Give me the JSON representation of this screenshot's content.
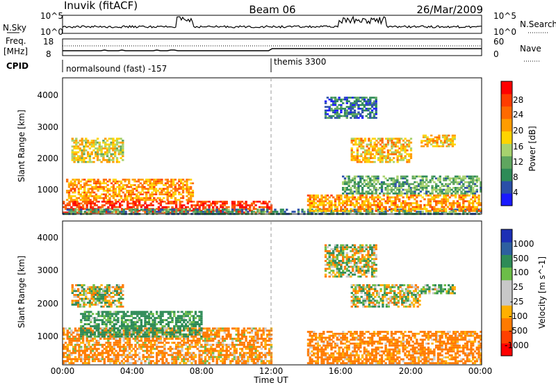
{
  "header": {
    "station": "Inuvik (fitACF)",
    "beam": "Beam 06",
    "date": "26/Mar/2009"
  },
  "noise_panel": {
    "left_label": "N.Sky",
    "right_label": "N.Search",
    "left_ticks": [
      "10^5",
      "10^0"
    ],
    "right_ticks": [
      "10^5",
      "10^0"
    ]
  },
  "freq_panel": {
    "left_label_1": "Freq.",
    "left_label_2": "[MHz]",
    "left_ticks": [
      "18",
      "8"
    ],
    "right_label": "Nave",
    "right_ticks": [
      "60",
      "0"
    ]
  },
  "cpid_panel": {
    "label": "CPID",
    "modes": [
      {
        "name": "normalsound (fast) -157",
        "start_hour": 0
      },
      {
        "name": "themis 3300",
        "start_hour": 12
      }
    ]
  },
  "x_axis": {
    "title": "Time UT",
    "ticks": [
      "00:00",
      "04:00",
      "08:00",
      "12:00",
      "16:00",
      "20:00",
      "00:00"
    ]
  },
  "power_panel": {
    "ylabel": "Slant Range [km]",
    "yticks": [
      "4000",
      "3000",
      "2000",
      "1000"
    ],
    "colorbar_label": "Power [dB]",
    "colorbar_ticks": [
      "28",
      "24",
      "20",
      "16",
      "12",
      "8",
      "4"
    ],
    "colors": [
      "#1a1aff",
      "#2a4fa8",
      "#2e8b57",
      "#5fa65f",
      "#a7d26e",
      "#ffd400",
      "#ff9c00",
      "#ff6a00",
      "#ff3c00",
      "#ff0000"
    ]
  },
  "velocity_panel": {
    "ylabel": "Slant Range [km]",
    "yticks": [
      "4000",
      "3000",
      "2000",
      "1000"
    ],
    "colorbar_label": "Velocity [m s^-1]",
    "colorbar_ticks": [
      "1000",
      "500",
      "100",
      "25",
      "-25",
      "-100",
      "-500",
      "-1000"
    ],
    "colors": [
      "#1c2fb5",
      "#2d5fa0",
      "#2e8b57",
      "#6cbd48",
      "#c8c8c8",
      "#c8c8c8",
      "#ffb000",
      "#ff7a00",
      "#ff4000",
      "#ff0000"
    ]
  },
  "chart_data": [
    {
      "type": "heatmap",
      "title": "Power",
      "xlabel": "Time UT",
      "ylabel": "Slant Range [km]",
      "x_range_hours": [
        0,
        24
      ],
      "y_range_km": [
        180,
        4500
      ],
      "z_label": "Power [dB]",
      "z_range": [
        0,
        30
      ],
      "regions": [
        {
          "t0": 0.0,
          "t1": 12.0,
          "r0": 200,
          "r1": 600,
          "value": 26
        },
        {
          "t0": 0.2,
          "t1": 7.5,
          "r0": 600,
          "r1": 1300,
          "value": 20
        },
        {
          "t0": 0.5,
          "t1": 3.5,
          "r0": 1800,
          "r1": 2600,
          "value": 16
        },
        {
          "t0": 0.0,
          "t1": 24.0,
          "r0": 150,
          "r1": 350,
          "value": 8
        },
        {
          "t0": 14.0,
          "t1": 24.0,
          "r0": 250,
          "r1": 800,
          "value": 20
        },
        {
          "t0": 16.0,
          "t1": 24.0,
          "r0": 800,
          "r1": 1400,
          "value": 10
        },
        {
          "t0": 16.5,
          "t1": 20.0,
          "r0": 1800,
          "r1": 2600,
          "value": 18
        },
        {
          "t0": 20.5,
          "t1": 22.5,
          "r0": 2300,
          "r1": 2700,
          "value": 18
        },
        {
          "t0": 15.0,
          "t1": 18.0,
          "r0": 3200,
          "r1": 3900,
          "value": 6
        }
      ]
    },
    {
      "type": "heatmap",
      "title": "Velocity",
      "xlabel": "Time UT",
      "ylabel": "Slant Range [km]",
      "x_range_hours": [
        0,
        24
      ],
      "y_range_km": [
        180,
        4500
      ],
      "z_label": "Velocity [m s^-1]",
      "z_range": [
        -1000,
        1000
      ],
      "regions": [
        {
          "t0": 0.0,
          "t1": 12.0,
          "r0": 200,
          "r1": 1300,
          "value": -150
        },
        {
          "t0": 1.0,
          "t1": 8.0,
          "r0": 1000,
          "r1": 1800,
          "value": 200
        },
        {
          "t0": 0.5,
          "t1": 3.5,
          "r0": 1900,
          "r1": 2600,
          "value": 0
        },
        {
          "t0": 14.0,
          "t1": 24.0,
          "r0": 200,
          "r1": 1200,
          "value": -200
        },
        {
          "t0": 16.5,
          "t1": 20.5,
          "r0": 1900,
          "r1": 2600,
          "value": 0
        },
        {
          "t0": 20.5,
          "t1": 22.5,
          "r0": 2300,
          "r1": 2600,
          "value": 80
        },
        {
          "t0": 15.0,
          "t1": 18.0,
          "r0": 2800,
          "r1": 3800,
          "value": 0
        }
      ]
    }
  ]
}
